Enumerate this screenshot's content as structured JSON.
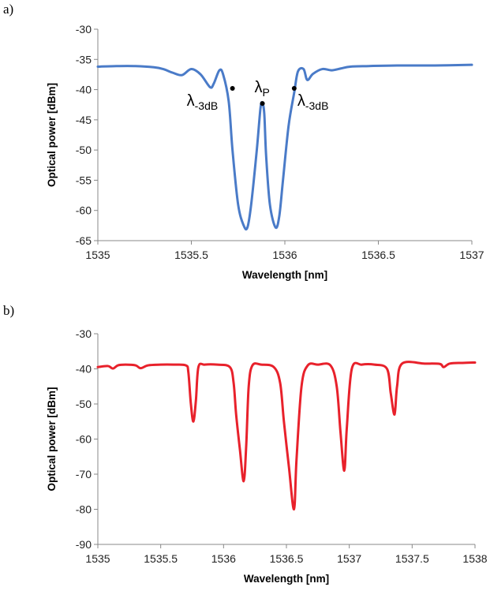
{
  "panels": {
    "a_label": "a)",
    "b_label": "b)"
  },
  "chart_data": [
    {
      "type": "line",
      "xlabel": "Wavelength [nm]",
      "ylabel": "Optical power [dBm]",
      "xlim": [
        1535,
        1537
      ],
      "ylim": [
        -65,
        -30
      ],
      "xticks": [
        1535,
        1535.5,
        1536,
        1536.5,
        1537
      ],
      "xtick_labels": [
        "1535",
        "1535.5",
        "1536",
        "1536.5",
        "1537"
      ],
      "yticks": [
        -30,
        -35,
        -40,
        -45,
        -50,
        -55,
        -60,
        -65
      ],
      "ytick_labels": [
        "-30",
        "-35",
        "-40",
        "-45",
        "-50",
        "-55",
        "-60",
        "-65"
      ],
      "grid": false,
      "color": "#4a7bc8",
      "series": [
        {
          "x": [
            1535.0,
            1535.1,
            1535.2,
            1535.3,
            1535.35,
            1535.4,
            1535.45,
            1535.5,
            1535.55,
            1535.6,
            1535.62,
            1535.65,
            1535.67,
            1535.7,
            1535.72,
            1535.75,
            1535.78,
            1535.8,
            1535.82,
            1535.85,
            1535.87,
            1535.88,
            1535.89,
            1535.9,
            1535.92,
            1535.95,
            1535.97,
            1535.99,
            1536.02,
            1536.05,
            1536.07,
            1536.1,
            1536.12,
            1536.15,
            1536.2,
            1536.25,
            1536.3,
            1536.35,
            1536.45,
            1536.6,
            1536.8,
            1537.0
          ],
          "y": [
            -36.2,
            -36.1,
            -36.1,
            -36.3,
            -36.6,
            -37.2,
            -37.6,
            -36.6,
            -37.5,
            -39.6,
            -39.0,
            -36.8,
            -37.5,
            -42.0,
            -50.0,
            -59.0,
            -62.5,
            -62.8,
            -59.0,
            -50.0,
            -43.0,
            -42.3,
            -44.0,
            -51.0,
            -59.0,
            -62.8,
            -61.0,
            -55.0,
            -46.0,
            -40.5,
            -37.0,
            -36.6,
            -38.4,
            -37.4,
            -36.6,
            -36.8,
            -36.5,
            -36.2,
            -36.1,
            -36.0,
            -36.0,
            -35.9
          ]
        }
      ],
      "markers": [
        {
          "x": 1535.72,
          "y": -39.8,
          "label_main": "λ",
          "label_sub": "-3dB"
        },
        {
          "x": 1535.88,
          "y": -42.3,
          "label_main": "λ",
          "label_sub": "P"
        },
        {
          "x": 1536.05,
          "y": -39.8,
          "label_main": "λ",
          "label_sub": "-3dB"
        }
      ]
    },
    {
      "type": "line",
      "xlabel": "Wavelength [nm]",
      "ylabel": "Optical power [dBm]",
      "xlim": [
        1535,
        1538
      ],
      "ylim": [
        -90,
        -30
      ],
      "xticks": [
        1535,
        1535.5,
        1536,
        1536.5,
        1537,
        1537.5,
        1538
      ],
      "xtick_labels": [
        "1535",
        "1535.5",
        "1536",
        "1536.5",
        "1537",
        "1537.5",
        "1538"
      ],
      "yticks": [
        -30,
        -40,
        -50,
        -60,
        -70,
        -80,
        -90
      ],
      "ytick_labels": [
        "-30",
        "-40",
        "-50",
        "-60",
        "-70",
        "-80",
        "-90"
      ],
      "grid": false,
      "color": "#e8212b",
      "series": [
        {
          "x": [
            1535.0,
            1535.08,
            1535.12,
            1535.16,
            1535.22,
            1535.3,
            1535.34,
            1535.4,
            1535.5,
            1535.6,
            1535.7,
            1535.72,
            1535.74,
            1535.76,
            1535.78,
            1535.8,
            1535.85,
            1535.95,
            1536.05,
            1536.08,
            1536.1,
            1536.13,
            1536.16,
            1536.18,
            1536.2,
            1536.23,
            1536.3,
            1536.4,
            1536.45,
            1536.48,
            1536.52,
            1536.56,
            1536.58,
            1536.62,
            1536.67,
            1536.75,
            1536.85,
            1536.9,
            1536.93,
            1536.96,
            1536.98,
            1537.02,
            1537.1,
            1537.2,
            1537.3,
            1537.33,
            1537.36,
            1537.38,
            1537.42,
            1537.6,
            1537.72,
            1537.75,
            1537.8,
            1537.9,
            1538.0
          ],
          "y": [
            -39.5,
            -39.2,
            -39.9,
            -39.0,
            -38.8,
            -39.0,
            -39.8,
            -39.0,
            -38.8,
            -38.8,
            -39.0,
            -41.0,
            -50.0,
            -55.0,
            -49.0,
            -39.5,
            -38.8,
            -38.8,
            -39.5,
            -44.0,
            -53.0,
            -63.0,
            -72.0,
            -62.0,
            -45.0,
            -39.0,
            -38.8,
            -39.5,
            -44.0,
            -55.0,
            -68.0,
            -80.0,
            -66.0,
            -45.0,
            -39.0,
            -38.8,
            -39.0,
            -45.0,
            -58.0,
            -69.0,
            -57.0,
            -40.0,
            -38.8,
            -38.8,
            -40.0,
            -47.0,
            -53.0,
            -45.0,
            -38.5,
            -38.5,
            -38.6,
            -39.5,
            -38.5,
            -38.3,
            -38.2
          ]
        }
      ],
      "markers": []
    }
  ]
}
